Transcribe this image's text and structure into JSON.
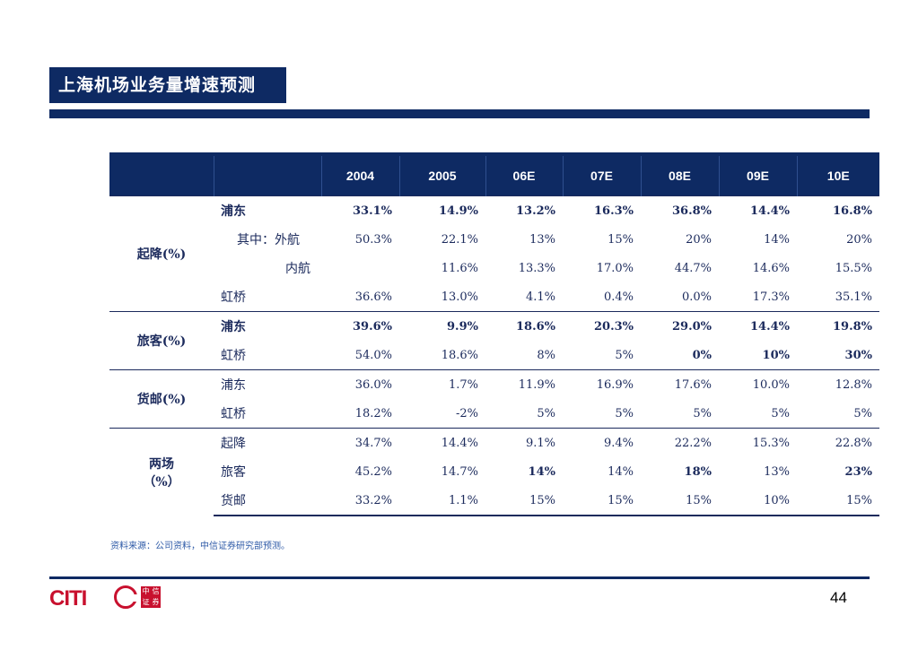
{
  "title": "上海机场业务量增速预测",
  "table": {
    "columns": [
      "2004",
      "2005",
      "06E",
      "07E",
      "08E",
      "09E",
      "10E"
    ],
    "groups": [
      {
        "label": "起降(%)",
        "rows": [
          {
            "label": "浦东",
            "values": [
              "33.1%",
              "14.9%",
              "13.2%",
              "16.3%",
              "36.8%",
              "14.4%",
              "16.8%"
            ]
          },
          {
            "label": "其中：外航",
            "values": [
              "50.3%",
              "22.1%",
              "13%",
              "15%",
              "20%",
              "14%",
              "20%"
            ]
          },
          {
            "label": "内航",
            "values": [
              "",
              "11.6%",
              "13.3%",
              "17.0%",
              "44.7%",
              "14.6%",
              "15.5%"
            ]
          },
          {
            "label": "虹桥",
            "values": [
              "36.6%",
              "13.0%",
              "4.1%",
              "0.4%",
              "0.0%",
              "17.3%",
              "35.1%"
            ]
          }
        ]
      },
      {
        "label": "旅客(%)",
        "rows": [
          {
            "label": "浦东",
            "values": [
              "39.6%",
              "9.9%",
              "18.6%",
              "20.3%",
              "29.0%",
              "14.4%",
              "19.8%"
            ]
          },
          {
            "label": "虹桥",
            "values": [
              "54.0%",
              "18.6%",
              "8%",
              "5%",
              "0%",
              "10%",
              "30%"
            ]
          }
        ]
      },
      {
        "label": "货邮(%)",
        "rows": [
          {
            "label": "浦东",
            "values": [
              "36.0%",
              "1.7%",
              "11.9%",
              "16.9%",
              "17.6%",
              "10.0%",
              "12.8%"
            ]
          },
          {
            "label": "虹桥",
            "values": [
              "18.2%",
              "-2%",
              "5%",
              "5%",
              "5%",
              "5%",
              "5%"
            ]
          }
        ]
      },
      {
        "label_line1": "两场",
        "label_line2": "（%）",
        "rows": [
          {
            "label": "起降",
            "values": [
              "34.7%",
              "14.4%",
              "9.1%",
              "9.4%",
              "22.2%",
              "15.3%",
              "22.8%"
            ]
          },
          {
            "label": "旅客",
            "values": [
              "45.2%",
              "14.7%",
              "14%",
              "14%",
              "18%",
              "13%",
              "23%"
            ]
          },
          {
            "label": "货邮",
            "values": [
              "33.2%",
              "1.1%",
              "15%",
              "15%",
              "15%",
              "10%",
              "15%"
            ]
          }
        ]
      }
    ]
  },
  "source": "资料来源：公司资料，中信证券研究部预测。",
  "logo": {
    "text": "CITI",
    "cn": [
      "中",
      "信",
      "证",
      "券"
    ]
  },
  "page_number": "44",
  "colors": {
    "navy": "#0e2a63",
    "text": "#1b2a5c",
    "logo_red": "#c8102e",
    "source_blue": "#2e5aa7"
  }
}
